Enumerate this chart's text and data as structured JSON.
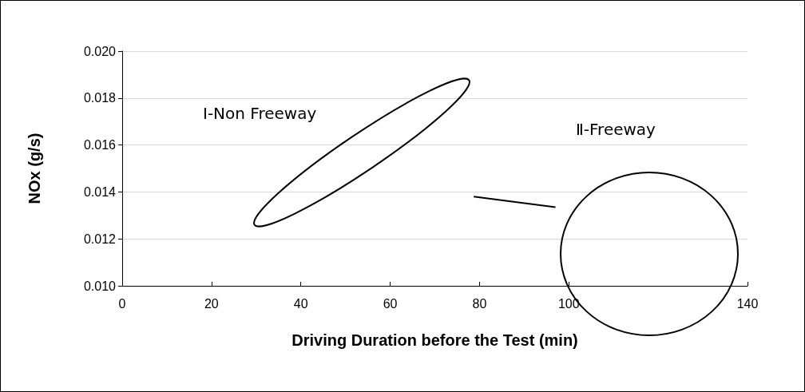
{
  "chart_data": {
    "type": "line",
    "xlabel": "Driving Duration before the Test (min)",
    "ylabel": "NOx (g/s)",
    "series": [
      {
        "color": "#000000",
        "x": [
          78.7,
          97.0
        ],
        "values": [
          0.0138,
          0.01335
        ]
      }
    ],
    "annotations": [
      "Ⅰ-Non Freeway",
      "Ⅱ-Freeway"
    ],
    "xlim": [
      0,
      140
    ],
    "xticks": [
      0,
      20,
      40,
      60,
      80,
      100,
      140
    ],
    "ylim": [
      0.01,
      0.02
    ],
    "yticks": [
      {
        "value": 0.01,
        "label": "0.010"
      },
      {
        "value": 0.012,
        "label": "0.012"
      },
      {
        "value": 0.014,
        "label": "0.014"
      },
      {
        "value": 0.016,
        "label": "0.016"
      },
      {
        "value": 0.018,
        "label": "0.018"
      },
      {
        "value": 0.02,
        "label": "0.020"
      }
    ],
    "grid": "y",
    "marker": "none"
  }
}
